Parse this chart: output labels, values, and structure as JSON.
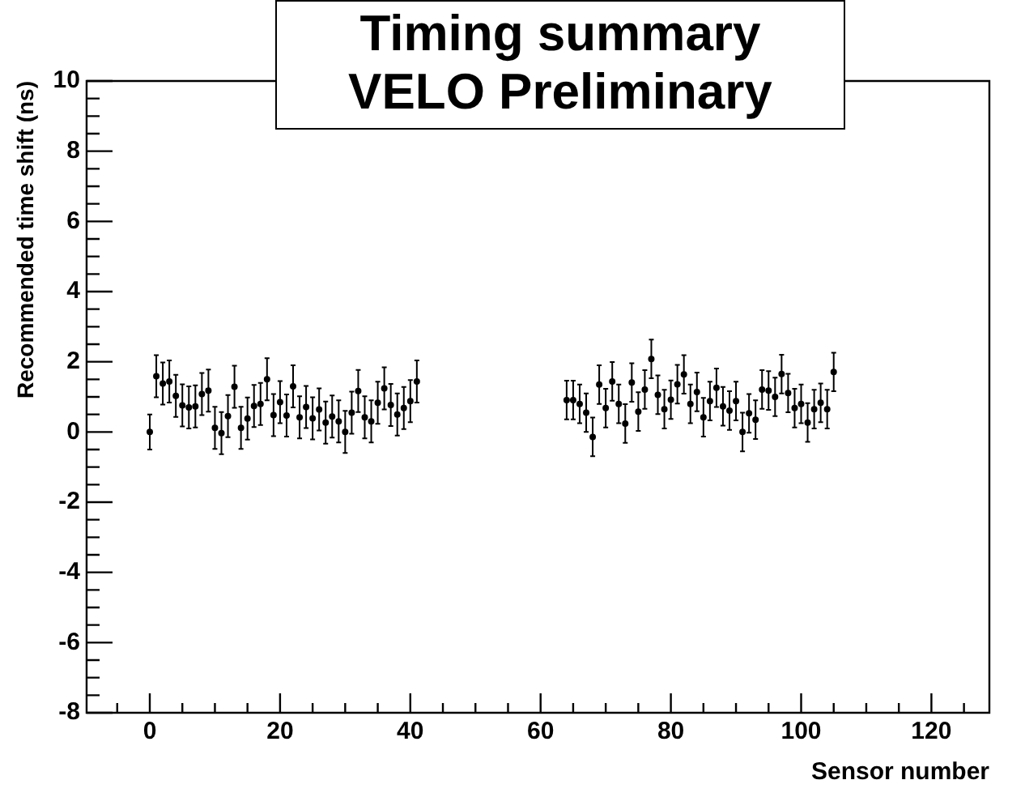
{
  "chart_data": {
    "type": "scatter",
    "title": "Timing summary\nVELO Preliminary",
    "xlabel": "Sensor number",
    "ylabel": "Recommended time shift (ns)",
    "x": [
      0,
      1,
      2,
      3,
      4,
      5,
      6,
      7,
      8,
      9,
      10,
      11,
      12,
      13,
      14,
      15,
      16,
      17,
      18,
      19,
      20,
      21,
      22,
      23,
      24,
      25,
      26,
      27,
      28,
      29,
      30,
      31,
      32,
      33,
      34,
      35,
      36,
      37,
      38,
      39,
      40,
      41,
      64,
      65,
      66,
      67,
      68,
      69,
      70,
      71,
      72,
      73,
      74,
      75,
      76,
      77,
      78,
      79,
      80,
      81,
      82,
      83,
      84,
      85,
      86,
      87,
      88,
      89,
      90,
      91,
      92,
      93,
      94,
      95,
      96,
      97,
      98,
      99,
      100,
      101,
      102,
      103,
      104,
      105
    ],
    "values": [
      0.0,
      1.59,
      1.38,
      1.44,
      1.03,
      0.76,
      0.7,
      0.73,
      1.08,
      1.18,
      0.12,
      -0.03,
      0.45,
      1.29,
      0.12,
      0.38,
      0.74,
      0.8,
      1.5,
      0.48,
      0.85,
      0.47,
      1.3,
      0.42,
      0.71,
      0.39,
      0.64,
      0.27,
      0.44,
      0.3,
      0.0,
      0.55,
      1.17,
      0.42,
      0.3,
      0.83,
      1.24,
      0.77,
      0.5,
      0.68,
      0.88,
      1.44,
      0.91,
      0.91,
      0.8,
      0.55,
      -0.14,
      1.35,
      0.68,
      1.44,
      0.8,
      0.24,
      1.41,
      0.58,
      1.21,
      2.08,
      1.06,
      0.65,
      0.92,
      1.36,
      1.64,
      0.8,
      1.14,
      0.42,
      0.88,
      1.26,
      0.73,
      0.61,
      0.88,
      0.0,
      0.53,
      0.35,
      1.21,
      1.18,
      1.0,
      1.65,
      1.11,
      0.68,
      0.8,
      0.27,
      0.65,
      0.83,
      0.65,
      1.71
    ],
    "errors": [
      0.5,
      0.6,
      0.6,
      0.6,
      0.6,
      0.6,
      0.6,
      0.6,
      0.6,
      0.6,
      0.6,
      0.6,
      0.6,
      0.6,
      0.6,
      0.6,
      0.6,
      0.6,
      0.6,
      0.6,
      0.6,
      0.6,
      0.6,
      0.6,
      0.6,
      0.6,
      0.6,
      0.6,
      0.6,
      0.6,
      0.6,
      0.6,
      0.6,
      0.6,
      0.6,
      0.6,
      0.6,
      0.6,
      0.6,
      0.6,
      0.6,
      0.6,
      0.55,
      0.55,
      0.55,
      0.55,
      0.55,
      0.55,
      0.55,
      0.55,
      0.55,
      0.55,
      0.55,
      0.55,
      0.55,
      0.55,
      0.55,
      0.55,
      0.55,
      0.55,
      0.55,
      0.55,
      0.55,
      0.55,
      0.55,
      0.55,
      0.55,
      0.55,
      0.55,
      0.55,
      0.55,
      0.55,
      0.55,
      0.55,
      0.55,
      0.55,
      0.55,
      0.55,
      0.55,
      0.55,
      0.55,
      0.55,
      0.55,
      0.55
    ],
    "color": "#000000",
    "marker": "circle",
    "xlim": [
      -9.7,
      128.9
    ],
    "ylim": [
      -8,
      10
    ],
    "xticks": [
      0,
      20,
      40,
      60,
      80,
      100,
      120
    ],
    "yticks": [
      -8,
      -6,
      -4,
      -2,
      0,
      2,
      4,
      6,
      8,
      10
    ]
  }
}
